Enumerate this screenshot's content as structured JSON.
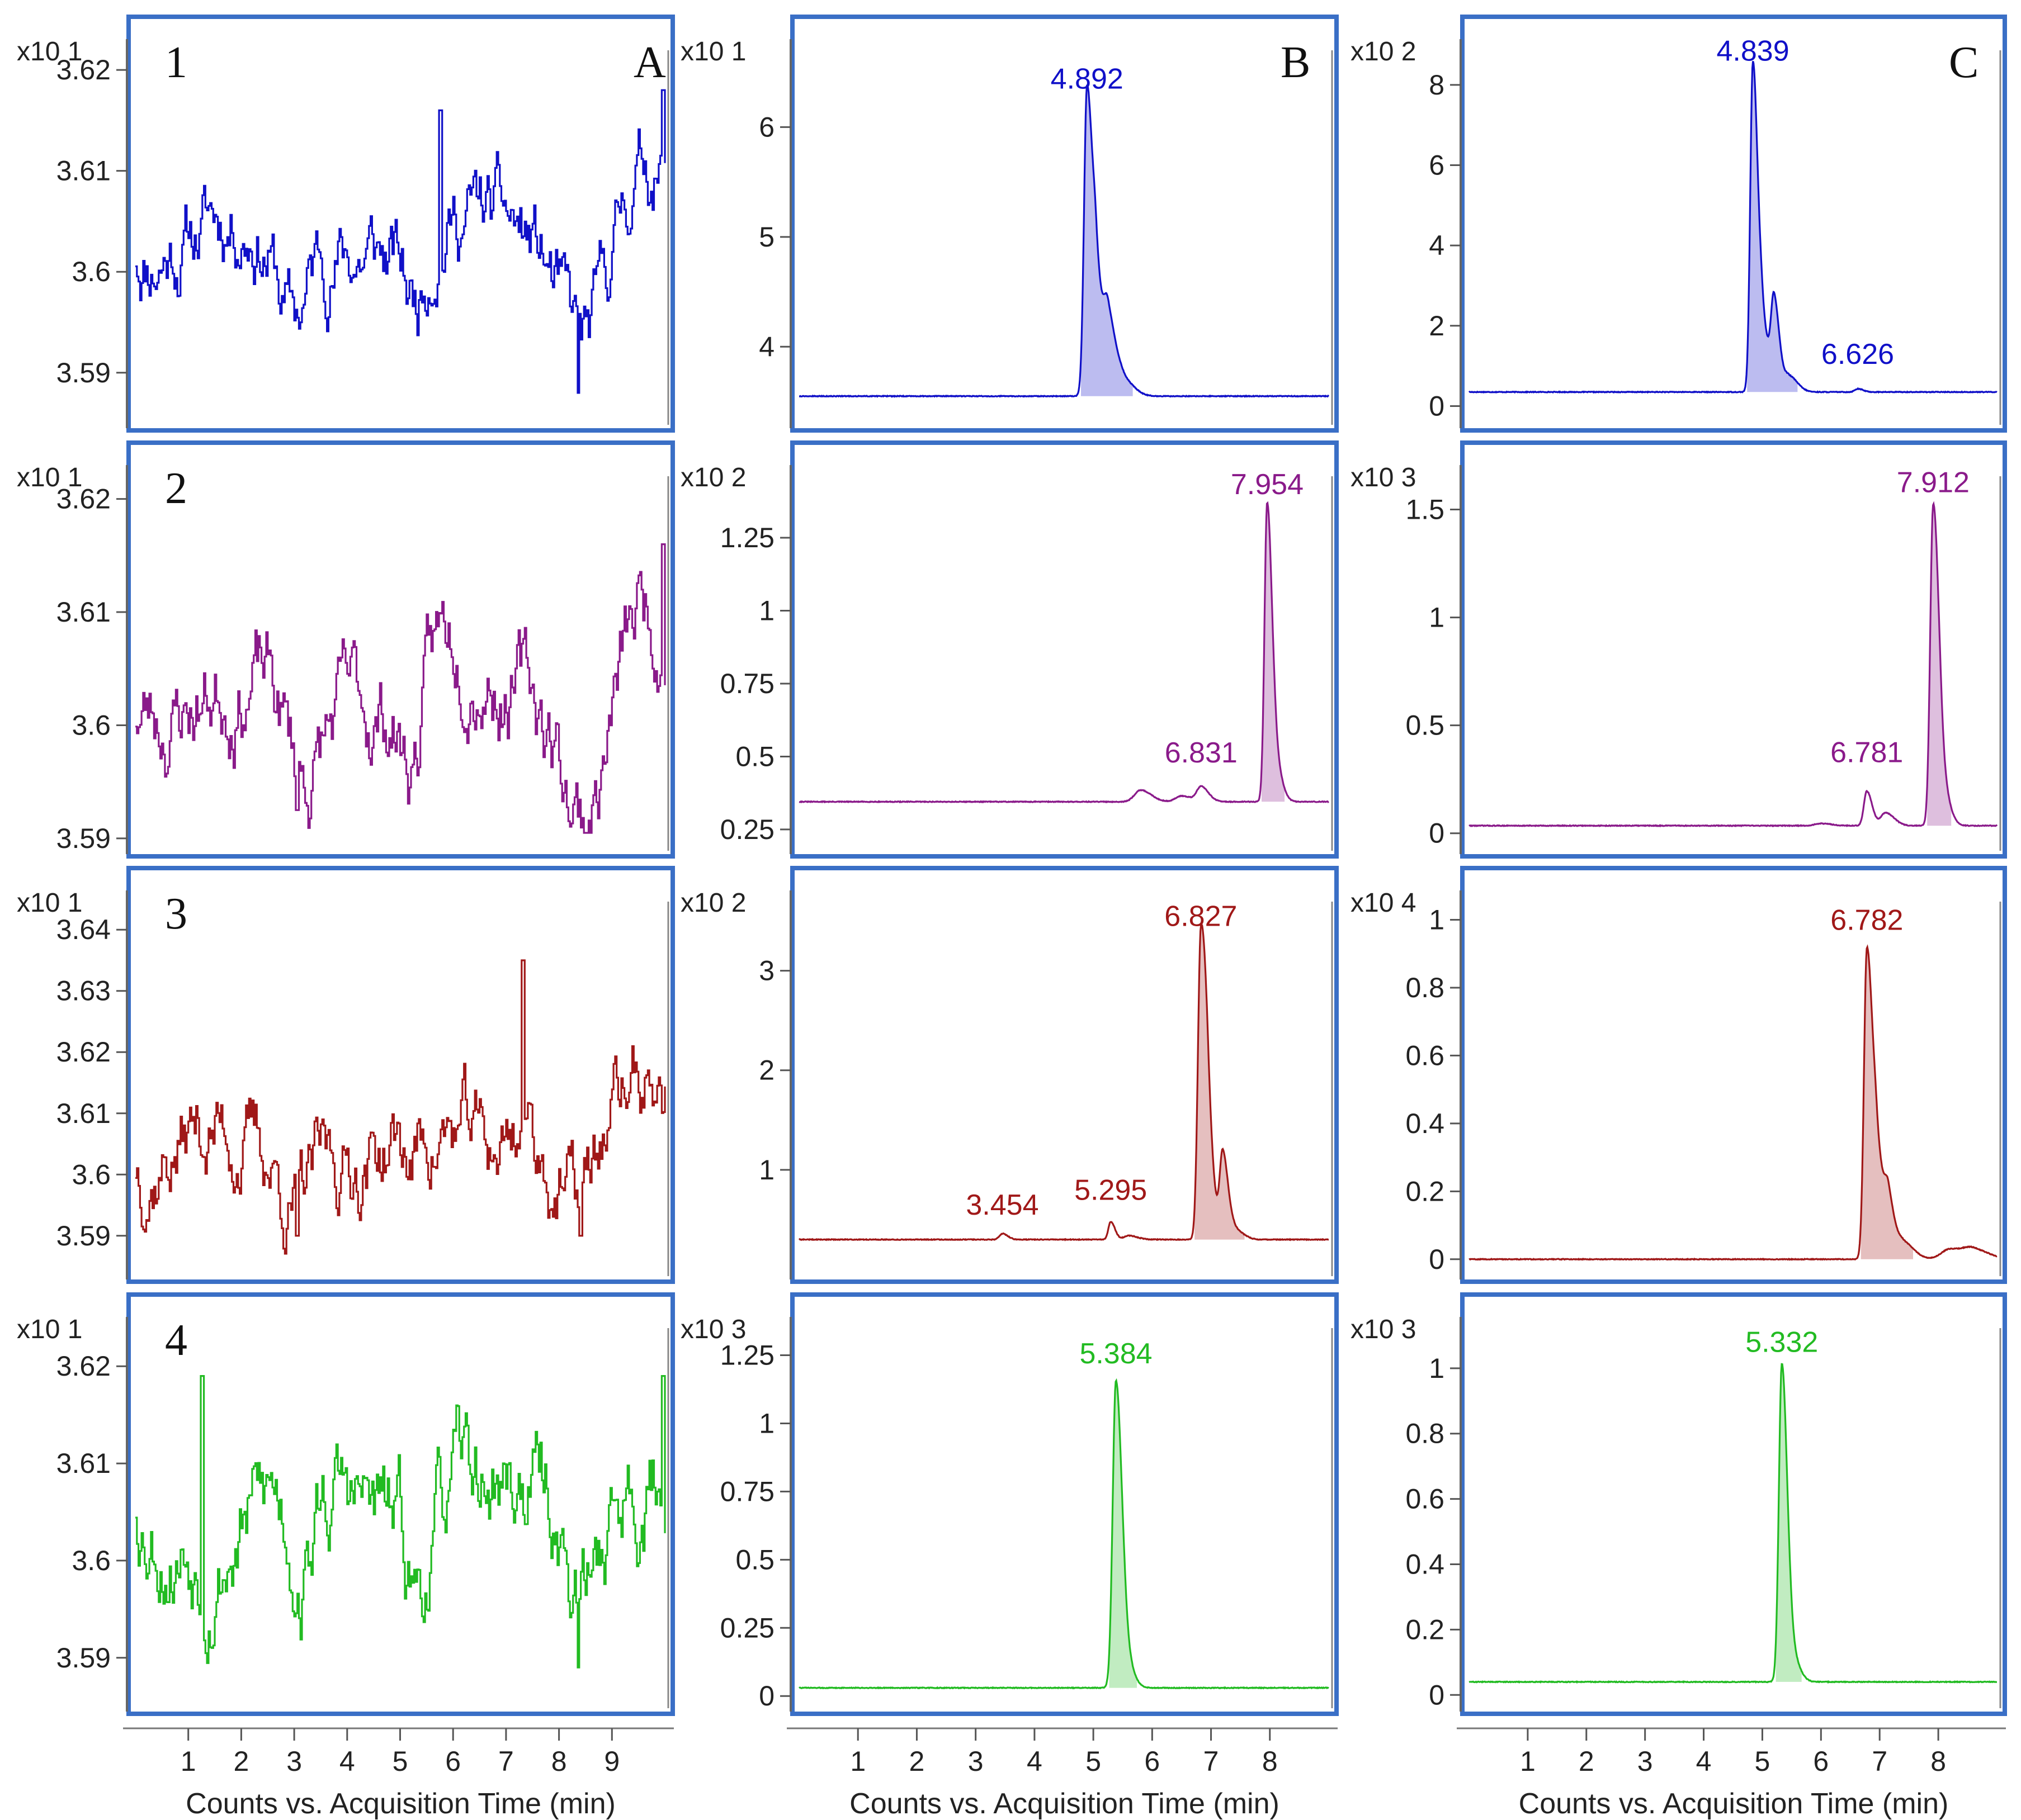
{
  "figure": {
    "column_labels": [
      "A",
      "B",
      "C"
    ],
    "row_labels": [
      "1",
      "2",
      "3",
      "4"
    ],
    "x_axis_label": "Counts vs. Acquisition Time (min)",
    "frame_color": "#3a6fc6"
  },
  "chart_data": [
    {
      "id": "1A",
      "type": "line",
      "row": 1,
      "col": "A",
      "color": "#1010c8",
      "exponent_label": "x10 1",
      "yticks": [
        "3.59",
        "3.6",
        "3.61",
        "3.62"
      ],
      "ytick_values": [
        3.59,
        3.6,
        3.61,
        3.62
      ],
      "ylim": [
        3.5855,
        3.6225
      ],
      "xlim": [
        0,
        10
      ],
      "xticks": [
        1,
        2,
        3,
        4,
        5,
        6,
        7,
        8,
        9
      ],
      "noise": {
        "base": 3.604,
        "amp": 0.0035,
        "seed": 11,
        "dips": [
          [
            2.75,
            3.15,
            -0.009
          ],
          [
            5.3,
            5.3,
            -0.006
          ],
          [
            8.2,
            8.8,
            -0.011
          ],
          [
            9.2,
            9.9,
            0.006
          ],
          [
            4.8,
            5.2,
            -0.003
          ]
        ],
        "spikes": [
          [
            5.75,
            3.616
          ],
          [
            9.95,
            3.618
          ],
          [
            8.35,
            3.588
          ]
        ]
      },
      "peaks": [],
      "annotations": []
    },
    {
      "id": "1B",
      "type": "line",
      "row": 1,
      "col": "B",
      "color": "#1010c8",
      "exponent_label": "x10 1",
      "yticks": [
        "4",
        "5",
        "6"
      ],
      "ytick_values": [
        4,
        5,
        6
      ],
      "ylim": [
        3.35,
        6.75
      ],
      "xlim": [
        0,
        9
      ],
      "xticks": [
        1,
        2,
        3,
        4,
        5,
        6,
        7,
        8
      ],
      "baseline": 3.55,
      "peaks": [
        [
          4.892,
          2.8,
          0.05
        ],
        [
          5.05,
          1.0,
          0.06
        ],
        [
          5.25,
          0.7,
          0.07
        ],
        [
          5.5,
          0.15,
          0.1
        ]
      ],
      "annotations": [
        {
          "text": "4.892",
          "x": 4.892,
          "y": 6.35
        }
      ]
    },
    {
      "id": "1C",
      "type": "line",
      "row": 1,
      "col": "C",
      "color": "#1010c8",
      "exponent_label": "x10 2",
      "yticks": [
        "0",
        "2",
        "4",
        "6",
        "8"
      ],
      "ytick_values": [
        0,
        2,
        4,
        6,
        8
      ],
      "ylim": [
        -0.3,
        9.0
      ],
      "xlim": [
        0,
        9
      ],
      "xticks": [
        1,
        2,
        3,
        4,
        5,
        6,
        7,
        8
      ],
      "baseline": 0.35,
      "peaks": [
        [
          4.839,
          8.2,
          0.045
        ],
        [
          5.0,
          1.6,
          0.06
        ],
        [
          5.2,
          2.2,
          0.05
        ],
        [
          5.45,
          0.4,
          0.08
        ],
        [
          6.626,
          0.08,
          0.05
        ]
      ],
      "annotations": [
        {
          "text": "4.839",
          "x": 4.839,
          "y": 8.6
        },
        {
          "text": "6.626",
          "x": 6.626,
          "y": 1.05
        }
      ]
    },
    {
      "id": "2A",
      "type": "line",
      "row": 2,
      "col": "A",
      "color": "#8a1a8a",
      "exponent_label": "x10 1",
      "yticks": [
        "3.59",
        "3.6",
        "3.61",
        "3.62"
      ],
      "ytick_values": [
        3.59,
        3.6,
        3.61,
        3.62
      ],
      "ylim": [
        3.5895,
        3.6225
      ],
      "xlim": [
        0,
        10
      ],
      "xticks": [
        1,
        2,
        3,
        4,
        5,
        6,
        7,
        8,
        9
      ],
      "noise": {
        "base": 3.603,
        "amp": 0.0035,
        "seed": 23,
        "dips": [
          [
            2.9,
            3.4,
            -0.008
          ],
          [
            5.1,
            5.3,
            -0.006
          ],
          [
            8.2,
            8.8,
            -0.009
          ],
          [
            9.2,
            9.9,
            0.007
          ],
          [
            5.8,
            6.4,
            0.004
          ]
        ],
        "spikes": [
          [
            9.95,
            3.616
          ],
          [
            3.05,
            3.5925
          ]
        ]
      },
      "peaks": [],
      "annotations": []
    },
    {
      "id": "2B",
      "type": "line",
      "row": 2,
      "col": "B",
      "color": "#8a1a8a",
      "exponent_label": "x10 2",
      "yticks": [
        "0.25",
        "0.5",
        "0.75",
        "1",
        "1.25"
      ],
      "ytick_values": [
        0.25,
        0.5,
        0.75,
        1.0,
        1.25
      ],
      "ylim": [
        0.2,
        1.48
      ],
      "xlim": [
        0,
        9
      ],
      "xticks": [
        1,
        2,
        3,
        4,
        5,
        6,
        7,
        8
      ],
      "baseline": 0.345,
      "peaks": [
        [
          7.954,
          1.02,
          0.045
        ],
        [
          8.1,
          0.12,
          0.06
        ],
        [
          6.831,
          0.05,
          0.07
        ],
        [
          5.8,
          0.04,
          0.1
        ],
        [
          6.5,
          0.02,
          0.1
        ]
      ],
      "annotations": [
        {
          "text": "7.954",
          "x": 7.954,
          "y": 1.4
        },
        {
          "text": "6.831",
          "x": 6.831,
          "y": 0.48
        }
      ]
    },
    {
      "id": "2C",
      "type": "line",
      "row": 2,
      "col": "C",
      "color": "#8a1a8a",
      "exponent_label": "x10 3",
      "yticks": [
        "0",
        "0.5",
        "1",
        "1.5"
      ],
      "ytick_values": [
        0,
        0.5,
        1.0,
        1.5
      ],
      "ylim": [
        -0.05,
        1.68
      ],
      "xlim": [
        0,
        9
      ],
      "xticks": [
        1,
        2,
        3,
        4,
        5,
        6,
        7,
        8
      ],
      "baseline": 0.035,
      "peaks": [
        [
          7.912,
          1.46,
          0.05
        ],
        [
          8.05,
          0.2,
          0.07
        ],
        [
          6.781,
          0.16,
          0.05
        ],
        [
          7.1,
          0.06,
          0.08
        ],
        [
          6.0,
          0.01,
          0.1
        ]
      ],
      "annotations": [
        {
          "text": "7.912",
          "x": 7.912,
          "y": 1.58
        },
        {
          "text": "6.781",
          "x": 6.781,
          "y": 0.33
        }
      ]
    },
    {
      "id": "3A",
      "type": "line",
      "row": 3,
      "col": "A",
      "color": "#a01818",
      "exponent_label": "x10 1",
      "yticks": [
        "3.59",
        "3.6",
        "3.61",
        "3.62",
        "3.63",
        "3.64"
      ],
      "ytick_values": [
        3.59,
        3.6,
        3.61,
        3.62,
        3.63,
        3.64
      ],
      "ylim": [
        3.5845,
        3.6455
      ],
      "xlim": [
        0,
        10
      ],
      "xticks": [
        1,
        2,
        3,
        4,
        5,
        6,
        7,
        8,
        9
      ],
      "noise": {
        "base": 3.604,
        "amp": 0.006,
        "seed": 37,
        "dips": [
          [
            2.8,
            3.2,
            -0.006
          ],
          [
            5.1,
            5.3,
            -0.005
          ],
          [
            8.2,
            8.6,
            -0.008
          ],
          [
            9.2,
            9.9,
            0.008
          ],
          [
            7.1,
            7.5,
            0.008
          ]
        ],
        "spikes": [
          [
            7.3,
            3.635
          ],
          [
            3.05,
            3.59
          ],
          [
            8.4,
            3.59
          ]
        ]
      },
      "peaks": [],
      "annotations": []
    },
    {
      "id": "3B",
      "type": "line",
      "row": 3,
      "col": "B",
      "color": "#a01818",
      "exponent_label": "x10 2",
      "yticks": [
        "1",
        "2",
        "3"
      ],
      "ytick_values": [
        1,
        2,
        3
      ],
      "ylim": [
        0.0,
        3.75
      ],
      "xlim": [
        0,
        9
      ],
      "xticks": [
        1,
        2,
        3,
        4,
        5,
        6,
        7,
        8
      ],
      "baseline": 0.3,
      "peaks": [
        [
          6.827,
          3.05,
          0.05
        ],
        [
          6.95,
          0.8,
          0.06
        ],
        [
          7.2,
          0.85,
          0.05
        ],
        [
          7.4,
          0.1,
          0.08
        ],
        [
          3.454,
          0.06,
          0.05
        ],
        [
          5.295,
          0.18,
          0.04
        ],
        [
          5.6,
          0.04,
          0.08
        ]
      ],
      "annotations": [
        {
          "text": "6.827",
          "x": 6.827,
          "y": 3.45
        },
        {
          "text": "3.454",
          "x": 3.454,
          "y": 0.55
        },
        {
          "text": "5.295",
          "x": 5.295,
          "y": 0.7
        }
      ]
    },
    {
      "id": "3C",
      "type": "line",
      "row": 3,
      "col": "C",
      "color": "#a01818",
      "exponent_label": "x10 4",
      "yticks": [
        "0",
        "0.2",
        "0.4",
        "0.6",
        "0.8",
        "1"
      ],
      "ytick_values": [
        0,
        0.2,
        0.4,
        0.6,
        0.8,
        1.0
      ],
      "ylim": [
        -0.03,
        1.07
      ],
      "xlim": [
        0,
        9
      ],
      "xticks": [
        1,
        2,
        3,
        4,
        5,
        6,
        7,
        8
      ],
      "baseline": 0.0,
      "peaks": [
        [
          6.782,
          0.9,
          0.05
        ],
        [
          6.95,
          0.3,
          0.07
        ],
        [
          7.15,
          0.14,
          0.06
        ],
        [
          7.4,
          0.05,
          0.1
        ],
        [
          8.2,
          0.03,
          0.15
        ],
        [
          8.6,
          0.025,
          0.15
        ]
      ],
      "annotations": [
        {
          "text": "6.782",
          "x": 6.782,
          "y": 0.97
        }
      ]
    },
    {
      "id": "4A",
      "type": "line",
      "row": 4,
      "col": "A",
      "color": "#22bb22",
      "exponent_label": "x10 1",
      "yticks": [
        "3.59",
        "3.6",
        "3.61",
        "3.62"
      ],
      "ytick_values": [
        3.59,
        3.6,
        3.61,
        3.62
      ],
      "ylim": [
        3.5855,
        3.6245
      ],
      "xlim": [
        0,
        10
      ],
      "xticks": [
        1,
        2,
        3,
        4,
        5,
        6,
        7,
        8,
        9
      ],
      "noise": {
        "base": 3.605,
        "amp": 0.0045,
        "seed": 53,
        "dips": [
          [
            3.0,
            3.3,
            -0.007
          ],
          [
            5.2,
            5.4,
            -0.006
          ],
          [
            8.2,
            8.6,
            -0.009
          ],
          [
            9.2,
            9.9,
            0.006
          ],
          [
            5.8,
            6.4,
            0.003
          ]
        ],
        "spikes": [
          [
            9.95,
            3.619
          ],
          [
            1.25,
            3.619
          ],
          [
            8.35,
            3.589
          ]
        ]
      },
      "peaks": [],
      "annotations": []
    },
    {
      "id": "4B",
      "type": "line",
      "row": 4,
      "col": "B",
      "color": "#22bb22",
      "exponent_label": "x10 3",
      "yticks": [
        "0",
        "0.25",
        "0.5",
        "0.75",
        "1",
        "1.25"
      ],
      "ytick_values": [
        0,
        0.25,
        0.5,
        0.75,
        1.0,
        1.25
      ],
      "ylim": [
        -0.02,
        1.37
      ],
      "xlim": [
        0,
        9
      ],
      "xticks": [
        1,
        2,
        3,
        4,
        5,
        6,
        7,
        8
      ],
      "baseline": 0.03,
      "peaks": [
        [
          5.384,
          1.12,
          0.055
        ],
        [
          5.55,
          0.1,
          0.07
        ]
      ],
      "annotations": [
        {
          "text": "5.384",
          "x": 5.384,
          "y": 1.22
        }
      ]
    },
    {
      "id": "4C",
      "type": "line",
      "row": 4,
      "col": "C",
      "color": "#22bb22",
      "exponent_label": "x10 3",
      "yticks": [
        "0",
        "0.2",
        "0.4",
        "0.6",
        "0.8",
        "1"
      ],
      "ytick_values": [
        0,
        0.2,
        0.4,
        0.6,
        0.8,
        1.0
      ],
      "ylim": [
        -0.02,
        1.14
      ],
      "xlim": [
        0,
        9
      ],
      "xticks": [
        1,
        2,
        3,
        4,
        5,
        6,
        7,
        8
      ],
      "baseline": 0.04,
      "peaks": [
        [
          5.332,
          0.97,
          0.05
        ],
        [
          5.5,
          0.08,
          0.07
        ]
      ],
      "annotations": [
        {
          "text": "5.332",
          "x": 5.332,
          "y": 1.05
        }
      ]
    }
  ]
}
